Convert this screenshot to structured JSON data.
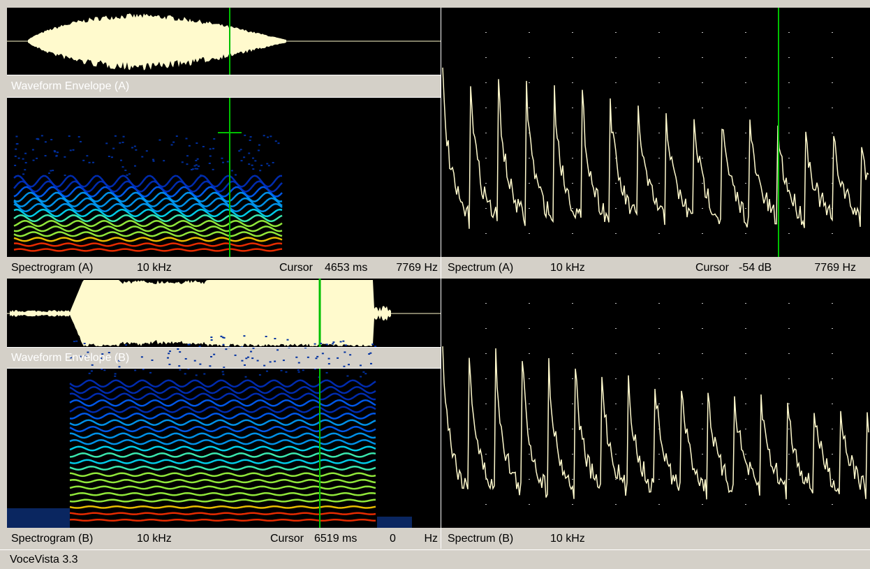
{
  "panels": {
    "waveform_a": {
      "label": "Waveform Envelope (A)"
    },
    "spectrogram_a": {
      "label": "Spectrogram (A)",
      "range": "10 kHz",
      "cursor": {
        "label": "Cursor",
        "time": "4653 ms",
        "freq": "7769 Hz"
      }
    },
    "spectrum_a": {
      "label": "Spectrum (A)",
      "range": "10 kHz",
      "cursor": {
        "label": "Cursor",
        "level": "-54 dB",
        "freq": "7769 Hz"
      }
    },
    "waveform_b": {
      "label": "Waveform Envelope (B)"
    },
    "spectrogram_b": {
      "label": "Spectrogram (B)",
      "range": "10 kHz",
      "cursor": {
        "label": "Cursor",
        "time": "6519 ms",
        "freq": "0",
        "unit": "Hz"
      }
    },
    "spectrum_b": {
      "label": "Spectrum (B)",
      "range": "10 kHz"
    }
  },
  "status": "VoceVista 3.3"
}
